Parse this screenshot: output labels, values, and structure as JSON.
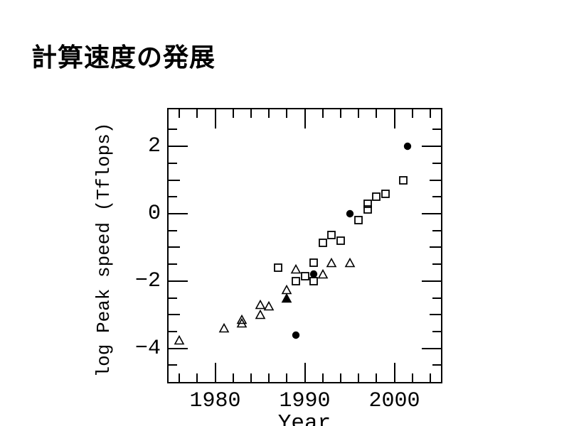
{
  "title": {
    "text": "計算速度の発展"
  },
  "colors": {
    "background": "#ffffff",
    "foreground": "#000000"
  },
  "chart_data": {
    "type": "scatter",
    "title": "計算速度の発展",
    "xlabel": "Year",
    "ylabel": "log Peak speed (Tflops)",
    "xlim": [
      1974.8,
      2005.2
    ],
    "ylim": [
      -5,
      3.1
    ],
    "grid": false,
    "legend": "none",
    "x_ticks": {
      "minor_start": 1976,
      "minor_end": 2004,
      "minor_step": 2,
      "major": [
        1980,
        1990,
        2000
      ],
      "labels": [
        "1980",
        "1990",
        "2000"
      ]
    },
    "y_ticks": {
      "minor_start": -4.5,
      "minor_end": 2.5,
      "minor_step": 0.5,
      "major": [
        -4,
        -2,
        0,
        2
      ],
      "labels": [
        "−4",
        "−2",
        "0",
        "2"
      ]
    },
    "series": [
      {
        "name": "open-triangle",
        "marker": "triangle-open",
        "points": [
          [
            1976,
            -3.75
          ],
          [
            1981,
            -3.4
          ],
          [
            1983,
            -3.15
          ],
          [
            1983,
            -3.25
          ],
          [
            1985,
            -2.7
          ],
          [
            1985,
            -3.0
          ],
          [
            1986,
            -2.75
          ],
          [
            1988,
            -2.25
          ],
          [
            1989,
            -1.65
          ],
          [
            1992,
            -1.8
          ],
          [
            1993,
            -1.45
          ],
          [
            1995,
            -1.45
          ]
        ]
      },
      {
        "name": "filled-triangle",
        "marker": "triangle-filled",
        "points": [
          [
            1988,
            -2.5
          ]
        ]
      },
      {
        "name": "open-square",
        "marker": "square-open",
        "points": [
          [
            1987,
            -1.6
          ],
          [
            1989,
            -2.0
          ],
          [
            1990,
            -1.85
          ],
          [
            1991,
            -2.0
          ],
          [
            1991,
            -1.45
          ],
          [
            1992,
            -0.87
          ],
          [
            1993,
            -0.63
          ],
          [
            1994,
            -0.8
          ],
          [
            1996,
            -0.2
          ],
          [
            1997,
            0.13
          ],
          [
            1997,
            0.3
          ],
          [
            1998,
            0.5
          ],
          [
            1999,
            0.6
          ],
          [
            2001,
            1.0
          ]
        ]
      },
      {
        "name": "filled-circle",
        "marker": "circle-filled",
        "points": [
          [
            1989,
            -3.6
          ],
          [
            1991,
            -1.8
          ],
          [
            1995,
            0.0
          ],
          [
            2001.5,
            2.0
          ]
        ]
      }
    ]
  }
}
